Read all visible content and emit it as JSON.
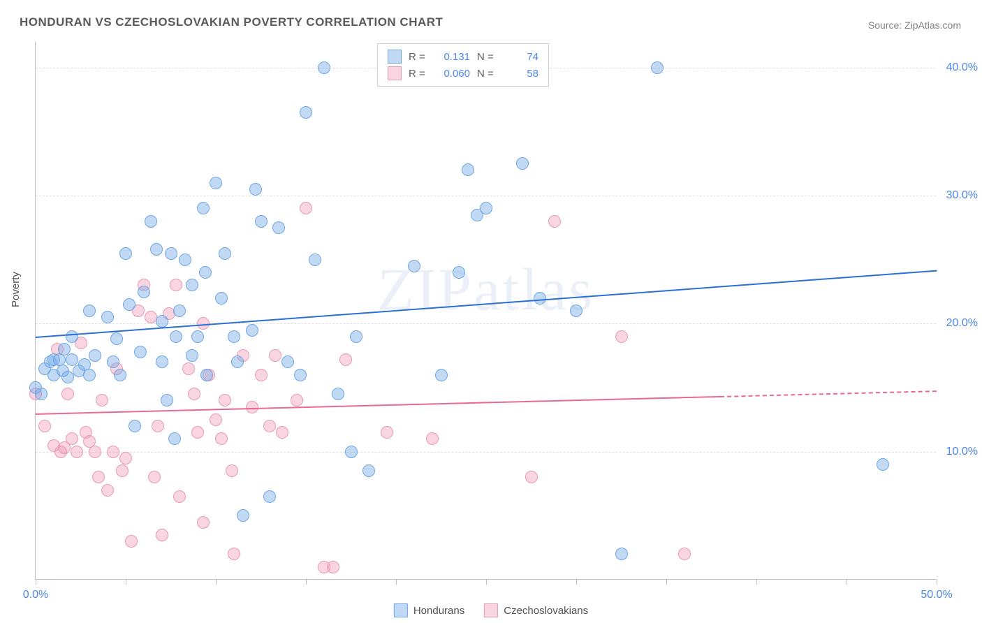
{
  "title": "HONDURAN VS CZECHOSLOVAKIAN POVERTY CORRELATION CHART",
  "source_label": "Source: ",
  "source_name": "ZipAtlas.com",
  "ylabel": "Poverty",
  "watermark": "ZIPatlas",
  "colors": {
    "series1_fill": "rgba(120,170,230,0.45)",
    "series1_stroke": "#6ea6e6",
    "series1_line": "#2b6fd6",
    "series2_fill": "rgba(240,150,180,0.40)",
    "series2_stroke": "#e89ab3",
    "series2_line": "#e86a94",
    "axis_value": "#4a86e8",
    "grid": "#e0e0e0",
    "border": "#bfbfbf",
    "text": "#555555"
  },
  "chart": {
    "type": "scatter",
    "xlim": [
      0,
      50
    ],
    "ylim": [
      0,
      42
    ],
    "yticks": [
      {
        "v": 10,
        "label": "10.0%"
      },
      {
        "v": 20,
        "label": "20.0%"
      },
      {
        "v": 30,
        "label": "30.0%"
      },
      {
        "v": 40,
        "label": "40.0%"
      }
    ],
    "xticks_major": [
      0,
      50
    ],
    "xticks_minor": [
      5,
      10,
      15,
      20,
      25,
      30,
      35,
      40,
      45
    ],
    "xlabels": [
      {
        "v": 0,
        "label": "0.0%"
      },
      {
        "v": 50,
        "label": "50.0%"
      }
    ],
    "point_radius": 9,
    "point_stroke_width": 1
  },
  "legend_top": {
    "rows": [
      {
        "swatch": 1,
        "r_label": "R =",
        "r_val": "0.131",
        "n_label": "N =",
        "n_val": "74"
      },
      {
        "swatch": 2,
        "r_label": "R =",
        "r_val": "0.060",
        "n_label": "N =",
        "n_val": "58"
      }
    ]
  },
  "legend_bottom": {
    "items": [
      {
        "swatch": 1,
        "label": "Hondurans"
      },
      {
        "swatch": 2,
        "label": "Czechoslovakians"
      }
    ]
  },
  "trend_lines": {
    "series1": {
      "x0": 0,
      "y0": 19.0,
      "x1": 50,
      "y1": 24.2,
      "color_key": "series1_line",
      "dashed_after": null
    },
    "series2": {
      "x0": 0,
      "y0": 13.0,
      "x1": 50,
      "y1": 14.8,
      "color_key": "series2_line",
      "dashed_after": 38
    }
  },
  "series1_points": [
    [
      0.3,
      14.5
    ],
    [
      0.5,
      16.5
    ],
    [
      0.8,
      17.0
    ],
    [
      1.0,
      16.0
    ],
    [
      1.0,
      17.2
    ],
    [
      1.3,
      17.2
    ],
    [
      1.5,
      16.3
    ],
    [
      1.6,
      18.0
    ],
    [
      1.8,
      15.8
    ],
    [
      2.0,
      17.2
    ],
    [
      2.0,
      19.0
    ],
    [
      2.4,
      16.3
    ],
    [
      2.7,
      16.8
    ],
    [
      3.0,
      21.0
    ],
    [
      3.0,
      16.0
    ],
    [
      3.3,
      17.5
    ],
    [
      4.0,
      20.5
    ],
    [
      4.3,
      17.0
    ],
    [
      4.5,
      18.8
    ],
    [
      4.7,
      16.0
    ],
    [
      5.0,
      25.5
    ],
    [
      5.2,
      21.5
    ],
    [
      5.5,
      12.0
    ],
    [
      5.8,
      17.8
    ],
    [
      6.0,
      22.5
    ],
    [
      6.4,
      28.0
    ],
    [
      6.7,
      25.8
    ],
    [
      7.0,
      17.0
    ],
    [
      7.0,
      20.2
    ],
    [
      7.3,
      14.0
    ],
    [
      7.5,
      25.5
    ],
    [
      7.7,
      11.0
    ],
    [
      7.8,
      19.0
    ],
    [
      8.0,
      21.0
    ],
    [
      8.3,
      25.0
    ],
    [
      8.7,
      17.5
    ],
    [
      8.7,
      23.0
    ],
    [
      9.0,
      19.0
    ],
    [
      9.3,
      29.0
    ],
    [
      9.4,
      24.0
    ],
    [
      9.5,
      16.0
    ],
    [
      10.0,
      31.0
    ],
    [
      10.3,
      22.0
    ],
    [
      10.5,
      25.5
    ],
    [
      11.0,
      19.0
    ],
    [
      11.2,
      17.0
    ],
    [
      11.5,
      5.0
    ],
    [
      12.0,
      19.5
    ],
    [
      12.2,
      30.5
    ],
    [
      12.5,
      28.0
    ],
    [
      13.0,
      6.5
    ],
    [
      13.5,
      27.5
    ],
    [
      14.0,
      17.0
    ],
    [
      14.7,
      16.0
    ],
    [
      15.0,
      36.5
    ],
    [
      15.5,
      25.0
    ],
    [
      16.0,
      40.0
    ],
    [
      16.8,
      14.5
    ],
    [
      17.5,
      10.0
    ],
    [
      17.8,
      19.0
    ],
    [
      18.5,
      8.5
    ],
    [
      21.0,
      24.5
    ],
    [
      22.5,
      16.0
    ],
    [
      23.5,
      24.0
    ],
    [
      24.0,
      32.0
    ],
    [
      24.5,
      28.5
    ],
    [
      25.0,
      29.0
    ],
    [
      27.0,
      32.5
    ],
    [
      28.0,
      22.0
    ],
    [
      30.0,
      21.0
    ],
    [
      32.5,
      2.0
    ],
    [
      34.5,
      40.0
    ],
    [
      47.0,
      9.0
    ],
    [
      0.0,
      15.0
    ]
  ],
  "series2_points": [
    [
      0.5,
      12.0
    ],
    [
      1.0,
      10.5
    ],
    [
      1.2,
      18.0
    ],
    [
      1.4,
      10.0
    ],
    [
      1.6,
      10.3
    ],
    [
      1.8,
      14.5
    ],
    [
      2.0,
      11.0
    ],
    [
      2.3,
      10.0
    ],
    [
      2.5,
      18.5
    ],
    [
      2.8,
      11.5
    ],
    [
      3.0,
      10.8
    ],
    [
      3.3,
      10.0
    ],
    [
      3.5,
      8.0
    ],
    [
      3.7,
      14.0
    ],
    [
      4.0,
      7.0
    ],
    [
      4.3,
      10.0
    ],
    [
      4.5,
      16.5
    ],
    [
      4.8,
      8.5
    ],
    [
      5.0,
      9.5
    ],
    [
      5.3,
      3.0
    ],
    [
      5.7,
      21.0
    ],
    [
      6.0,
      23.0
    ],
    [
      6.4,
      20.5
    ],
    [
      6.6,
      8.0
    ],
    [
      6.8,
      12.0
    ],
    [
      7.0,
      3.5
    ],
    [
      7.4,
      20.8
    ],
    [
      7.8,
      23.0
    ],
    [
      8.0,
      6.5
    ],
    [
      8.5,
      16.5
    ],
    [
      8.8,
      14.5
    ],
    [
      9.0,
      11.5
    ],
    [
      9.3,
      20.0
    ],
    [
      9.3,
      4.5
    ],
    [
      9.6,
      16.0
    ],
    [
      10.0,
      12.5
    ],
    [
      10.3,
      11.0
    ],
    [
      10.5,
      14.0
    ],
    [
      10.9,
      8.5
    ],
    [
      11.0,
      2.0
    ],
    [
      11.5,
      17.5
    ],
    [
      12.0,
      13.5
    ],
    [
      12.5,
      16.0
    ],
    [
      13.0,
      12.0
    ],
    [
      13.3,
      17.5
    ],
    [
      13.7,
      11.5
    ],
    [
      14.5,
      14.0
    ],
    [
      15.0,
      29.0
    ],
    [
      16.0,
      1.0
    ],
    [
      16.5,
      1.0
    ],
    [
      17.2,
      17.2
    ],
    [
      19.5,
      11.5
    ],
    [
      22.0,
      11.0
    ],
    [
      27.5,
      8.0
    ],
    [
      28.8,
      28.0
    ],
    [
      32.5,
      19.0
    ],
    [
      36.0,
      2.0
    ],
    [
      0.0,
      14.5
    ]
  ]
}
